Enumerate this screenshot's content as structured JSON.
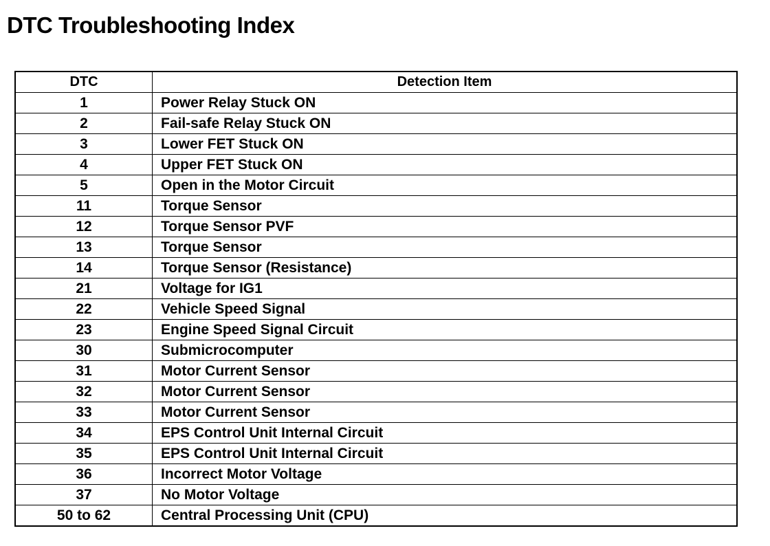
{
  "title": "DTC Troubleshooting Index",
  "table": {
    "headers": [
      "DTC",
      "Detection Item"
    ],
    "rows": [
      {
        "dtc": "1",
        "item": "Power Relay Stuck ON"
      },
      {
        "dtc": "2",
        "item": "Fail-safe Relay Stuck ON"
      },
      {
        "dtc": "3",
        "item": "Lower FET Stuck ON"
      },
      {
        "dtc": "4",
        "item": "Upper FET Stuck ON"
      },
      {
        "dtc": "5",
        "item": "Open in the Motor Circuit"
      },
      {
        "dtc": "11",
        "item": "Torque Sensor"
      },
      {
        "dtc": "12",
        "item": "Torque Sensor PVF"
      },
      {
        "dtc": "13",
        "item": "Torque Sensor"
      },
      {
        "dtc": "14",
        "item": "Torque Sensor (Resistance)"
      },
      {
        "dtc": "21",
        "item": "Voltage for IG1"
      },
      {
        "dtc": "22",
        "item": "Vehicle Speed Signal"
      },
      {
        "dtc": "23",
        "item": "Engine Speed Signal Circuit"
      },
      {
        "dtc": "30",
        "item": "Submicrocomputer"
      },
      {
        "dtc": "31",
        "item": "Motor Current Sensor"
      },
      {
        "dtc": "32",
        "item": "Motor Current Sensor"
      },
      {
        "dtc": "33",
        "item": "Motor Current Sensor"
      },
      {
        "dtc": "34",
        "item": "EPS Control Unit Internal Circuit"
      },
      {
        "dtc": "35",
        "item": "EPS Control Unit Internal Circuit"
      },
      {
        "dtc": "36",
        "item": "Incorrect Motor Voltage"
      },
      {
        "dtc": "37",
        "item": "No Motor Voltage"
      },
      {
        "dtc": "50 to 62",
        "item": "Central Processing Unit (CPU)"
      }
    ]
  }
}
